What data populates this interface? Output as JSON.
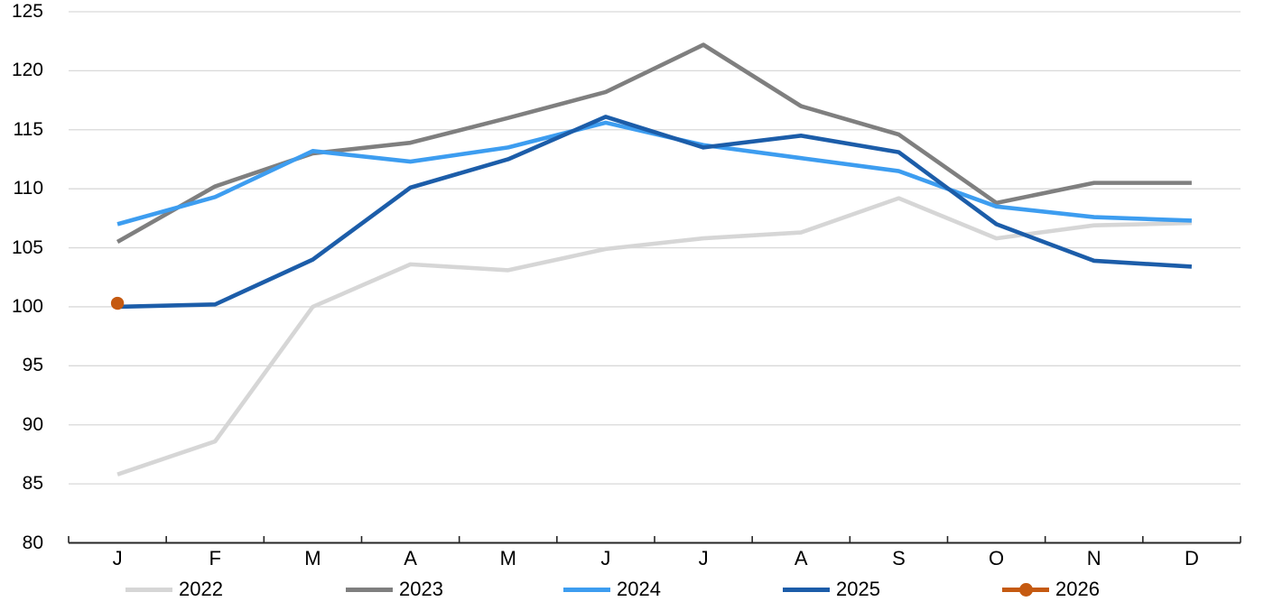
{
  "chart_data": {
    "type": "line",
    "title": "",
    "xlabel": "",
    "ylabel": "",
    "categories": [
      "J",
      "F",
      "M",
      "A",
      "M",
      "J",
      "J",
      "A",
      "S",
      "O",
      "N",
      "D"
    ],
    "y_ticks": [
      "80",
      "85",
      "90",
      "95",
      "100",
      "105",
      "110",
      "115",
      "120",
      "125"
    ],
    "ylim": [
      80,
      125
    ],
    "grid": true,
    "legend_position": "bottom",
    "series": [
      {
        "name": "2022",
        "color": "#D6D6D6",
        "marker": false,
        "values": [
          85.8,
          88.6,
          100.0,
          103.6,
          103.1,
          104.9,
          105.8,
          106.3,
          109.2,
          105.8,
          106.9,
          107.1
        ]
      },
      {
        "name": "2023",
        "color": "#7F7F7F",
        "marker": false,
        "values": [
          105.5,
          110.2,
          113.0,
          113.9,
          116.0,
          118.2,
          122.2,
          117.0,
          114.6,
          108.8,
          110.5,
          110.5
        ]
      },
      {
        "name": "2024",
        "color": "#3D9DF0",
        "marker": false,
        "values": [
          107.0,
          109.3,
          113.2,
          112.3,
          113.5,
          115.6,
          113.7,
          112.6,
          111.5,
          108.5,
          107.6,
          107.3
        ]
      },
      {
        "name": "2025",
        "color": "#1C5DA9",
        "marker": false,
        "values": [
          100.0,
          100.2,
          104.0,
          110.1,
          112.5,
          116.1,
          113.5,
          114.5,
          113.1,
          107.0,
          103.9,
          103.4
        ]
      },
      {
        "name": "2026",
        "color": "#C55A11",
        "marker": true,
        "values": [
          100.3
        ]
      }
    ],
    "colors": {
      "gridline": "#D9D9D9",
      "axis": "#262626",
      "text": "#000000"
    }
  }
}
